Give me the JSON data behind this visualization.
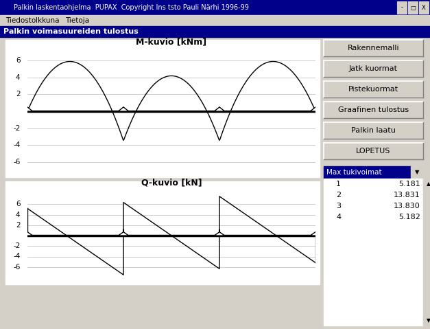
{
  "title_bar": "Palkin laskentaohjelma  PUPAX  Copyright Ins tsto Pauli Närhi 1996-99",
  "menu_items": [
    "Tiedosto",
    "Ikkuna",
    "Tietoja"
  ],
  "panel_title": "Palkin voimasuureiden tulostus",
  "m_title": "M-kuvio [kNm]",
  "q_title": "Q-kuvio [kN]",
  "buttons": [
    "Rakennemalli",
    "Jatk kuormat",
    "Pistekuormat",
    "Graafinen tulostus",
    "Palkin laatu",
    "LOPETUS"
  ],
  "dropdown_label": "Max tukivoimat",
  "table_data": [
    [
      1,
      5.181
    ],
    [
      2,
      13.831
    ],
    [
      3,
      13.83
    ],
    [
      4,
      5.182
    ]
  ],
  "bg_color": "#d4d0c8",
  "plot_bg": "#ffffff",
  "title_bar_color": "#00008b",
  "panel_bar_color": "#00008b",
  "reactions": [
    5.181,
    13.831,
    13.83,
    5.182
  ]
}
